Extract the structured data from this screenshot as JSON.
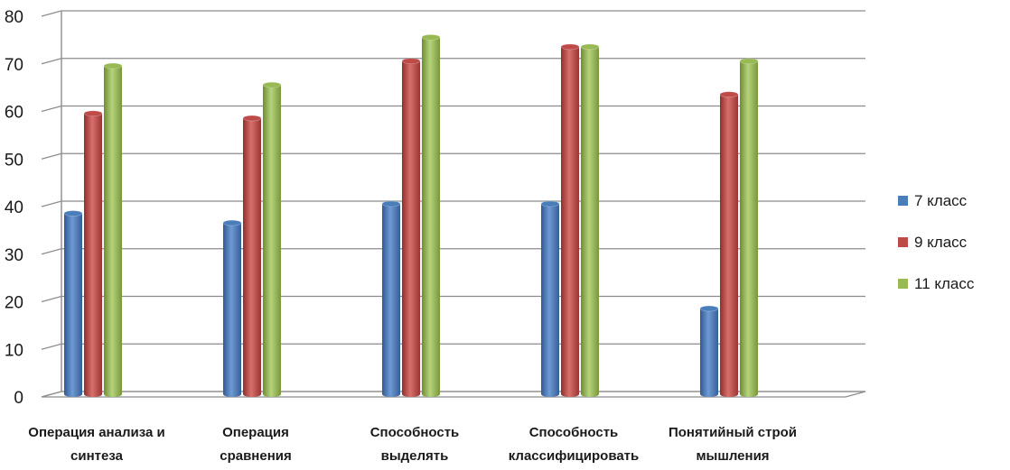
{
  "chart_data": {
    "type": "bar",
    "categories": [
      [
        "Операция анализа и",
        "синтеза"
      ],
      [
        "Операция",
        "сравнения"
      ],
      [
        "Способность",
        "выделять"
      ],
      [
        "Способность",
        "классифицировать"
      ],
      [
        "Понятийный строй",
        "мышления"
      ]
    ],
    "series": [
      {
        "name": "7 класс",
        "color": "#4a7ebb",
        "values": [
          38,
          36,
          40,
          40,
          18
        ]
      },
      {
        "name": "9 класс",
        "color": "#be4b48",
        "values": [
          59,
          58,
          70,
          73,
          63
        ]
      },
      {
        "name": "11 класс",
        "color": "#98b954",
        "values": [
          69,
          65,
          75,
          73,
          70
        ]
      }
    ],
    "ylim": [
      0,
      80
    ],
    "yticks": [
      "0",
      "10",
      "20",
      "30",
      "40",
      "50",
      "60",
      "70",
      "80"
    ],
    "grid": true,
    "legend_position": "right"
  }
}
